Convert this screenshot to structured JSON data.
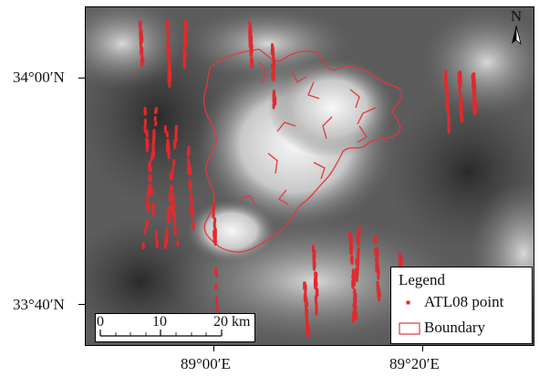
{
  "map": {
    "colors": {
      "boundary": "#e0393b",
      "points": "#e02a2e",
      "dem_low": "#2e2e2e",
      "dem_high": "#f5f5f5"
    },
    "latitude_ticks": [
      {
        "label": "34°00′N",
        "lat": 34.0
      },
      {
        "label": "33°40′N",
        "lat": 33.6667
      }
    ],
    "longitude_ticks": [
      {
        "label": "89°00′E",
        "lon": 89.0
      },
      {
        "label": "89°20′E",
        "lon": 89.3333
      }
    ],
    "north_arrow": {
      "label": "N",
      "icon": "north-arrow-icon"
    },
    "legend": {
      "title": "Legend",
      "items": [
        {
          "label": "ATL08 point",
          "symbol": "dot"
        },
        {
          "label": "Boundary",
          "symbol": "outline-rectangle"
        }
      ]
    },
    "scale_bar": {
      "labels": [
        "0",
        "10",
        "20 km"
      ]
    }
  }
}
